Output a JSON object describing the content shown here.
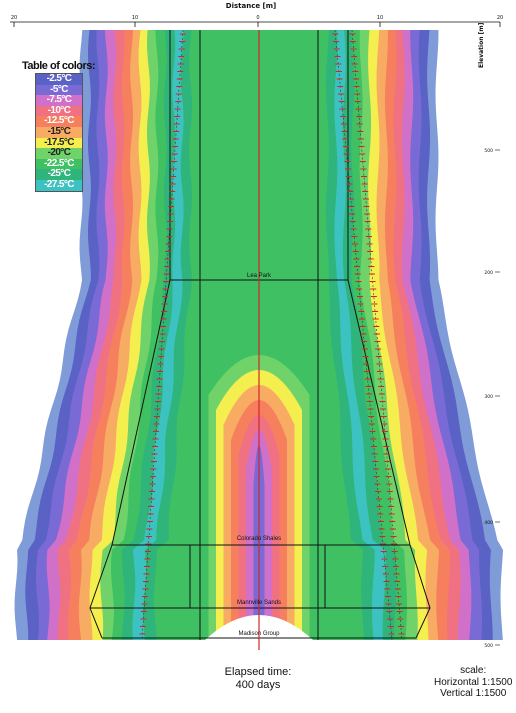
{
  "axis": {
    "distance_title": "Distance [m]",
    "elevation_title": "Elevation [m]",
    "top_ticks": [
      "20",
      "10",
      "0",
      "10",
      "20"
    ],
    "elevation_ticks": [
      "500",
      "200",
      "300",
      "400",
      "500"
    ]
  },
  "legend": {
    "title": "Table of colors:",
    "entries": [
      {
        "label": "-2.5°C",
        "color": "#5a62c6"
      },
      {
        "label": "-5°C",
        "color": "#7a6ad6"
      },
      {
        "label": "-7.5°C",
        "color": "#d070c8"
      },
      {
        "label": "-10°C",
        "color": "#f07282"
      },
      {
        "label": "-12.5°C",
        "color": "#f6805e"
      },
      {
        "label": "-15°C",
        "color": "#f8ab62"
      },
      {
        "label": "-17.5°C",
        "color": "#f4ef4e"
      },
      {
        "label": "-20°C",
        "color": "#6fd36a"
      },
      {
        "label": "-22.5°C",
        "color": "#3fc062"
      },
      {
        "label": "-25°C",
        "color": "#2fb57b"
      },
      {
        "label": "-27.5°C",
        "color": "#3dc2c2"
      }
    ]
  },
  "layers": [
    "Lea Park",
    "Colorado Shales",
    "Mannville Sands",
    "Madison Group"
  ],
  "elapsed": {
    "line1": "Elapsed time:",
    "line2": "400 days"
  },
  "scale": {
    "title": "scale:",
    "horizontal": "Horizontal 1:1500",
    "vertical": "Vertical 1:1500"
  },
  "colors": {
    "outer_blue": "#7f9bd8",
    "freeze_pipe": "#e02020",
    "center_line": "#d02828"
  }
}
